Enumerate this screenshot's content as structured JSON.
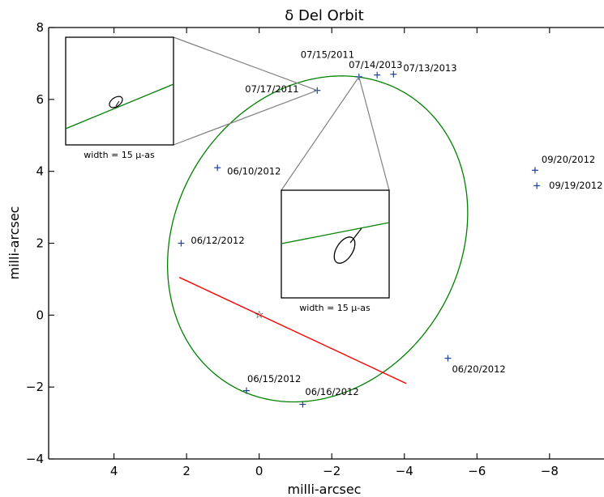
{
  "chart_data": {
    "type": "line",
    "title": "δ Del Orbit",
    "xlabel": "milli-arcsec",
    "ylabel": "milli-arcsec",
    "xlim": [
      5.8,
      -9.5
    ],
    "ylim": [
      -4,
      8
    ],
    "x_ticks": [
      4,
      2,
      0,
      -2,
      -4,
      -6,
      -8
    ],
    "x_tick_labels": [
      "4",
      "2",
      "0",
      "−2",
      "−4",
      "−6",
      "−8"
    ],
    "y_ticks": [
      -4,
      -2,
      0,
      2,
      4,
      6,
      8
    ],
    "y_tick_labels": [
      "−4",
      "−2",
      "0",
      "2",
      "4",
      "6",
      "8"
    ],
    "colors": {
      "orbit": "#008000",
      "line_of_nodes": "#ff0000",
      "points": "#1f3f9f",
      "inset_border": "#000000",
      "connector": "#808080"
    },
    "orbit": {
      "center": [
        -1.61,
        2.12
      ],
      "semi_major": 4.72,
      "semi_minor": 3.92,
      "angle_deg": -60
    },
    "line_of_nodes": {
      "x": [
        2.2,
        -4.05
      ],
      "y": [
        1.05,
        -1.9
      ]
    },
    "primary_star": {
      "x": 0,
      "y": 0
    },
    "points": [
      {
        "date": "07/17/2011",
        "x": -1.6,
        "y": 6.25
      },
      {
        "date": "07/15/2011",
        "x": -2.75,
        "y": 6.63
      },
      {
        "date": "07/14/2013",
        "x": -3.25,
        "y": 6.68
      },
      {
        "date": "07/13/2013",
        "x": -3.7,
        "y": 6.7
      },
      {
        "date": "09/20/2012",
        "x": -7.6,
        "y": 4.03
      },
      {
        "date": "09/19/2012",
        "x": -7.65,
        "y": 3.6
      },
      {
        "date": "06/10/2012",
        "x": 1.15,
        "y": 4.1
      },
      {
        "date": "06/12/2012",
        "x": 2.15,
        "y": 2.0
      },
      {
        "date": "06/20/2012",
        "x": -5.2,
        "y": -1.2
      },
      {
        "date": "06/15/2012",
        "x": 0.35,
        "y": -2.1
      },
      {
        "date": "06/16/2012",
        "x": -1.2,
        "y": -2.48
      }
    ],
    "insets": [
      {
        "caption": "width = 15 μ-as",
        "target_date": "07/17/2011"
      },
      {
        "caption": "width = 15 μ-as",
        "target_date": "07/15/2011"
      }
    ]
  }
}
